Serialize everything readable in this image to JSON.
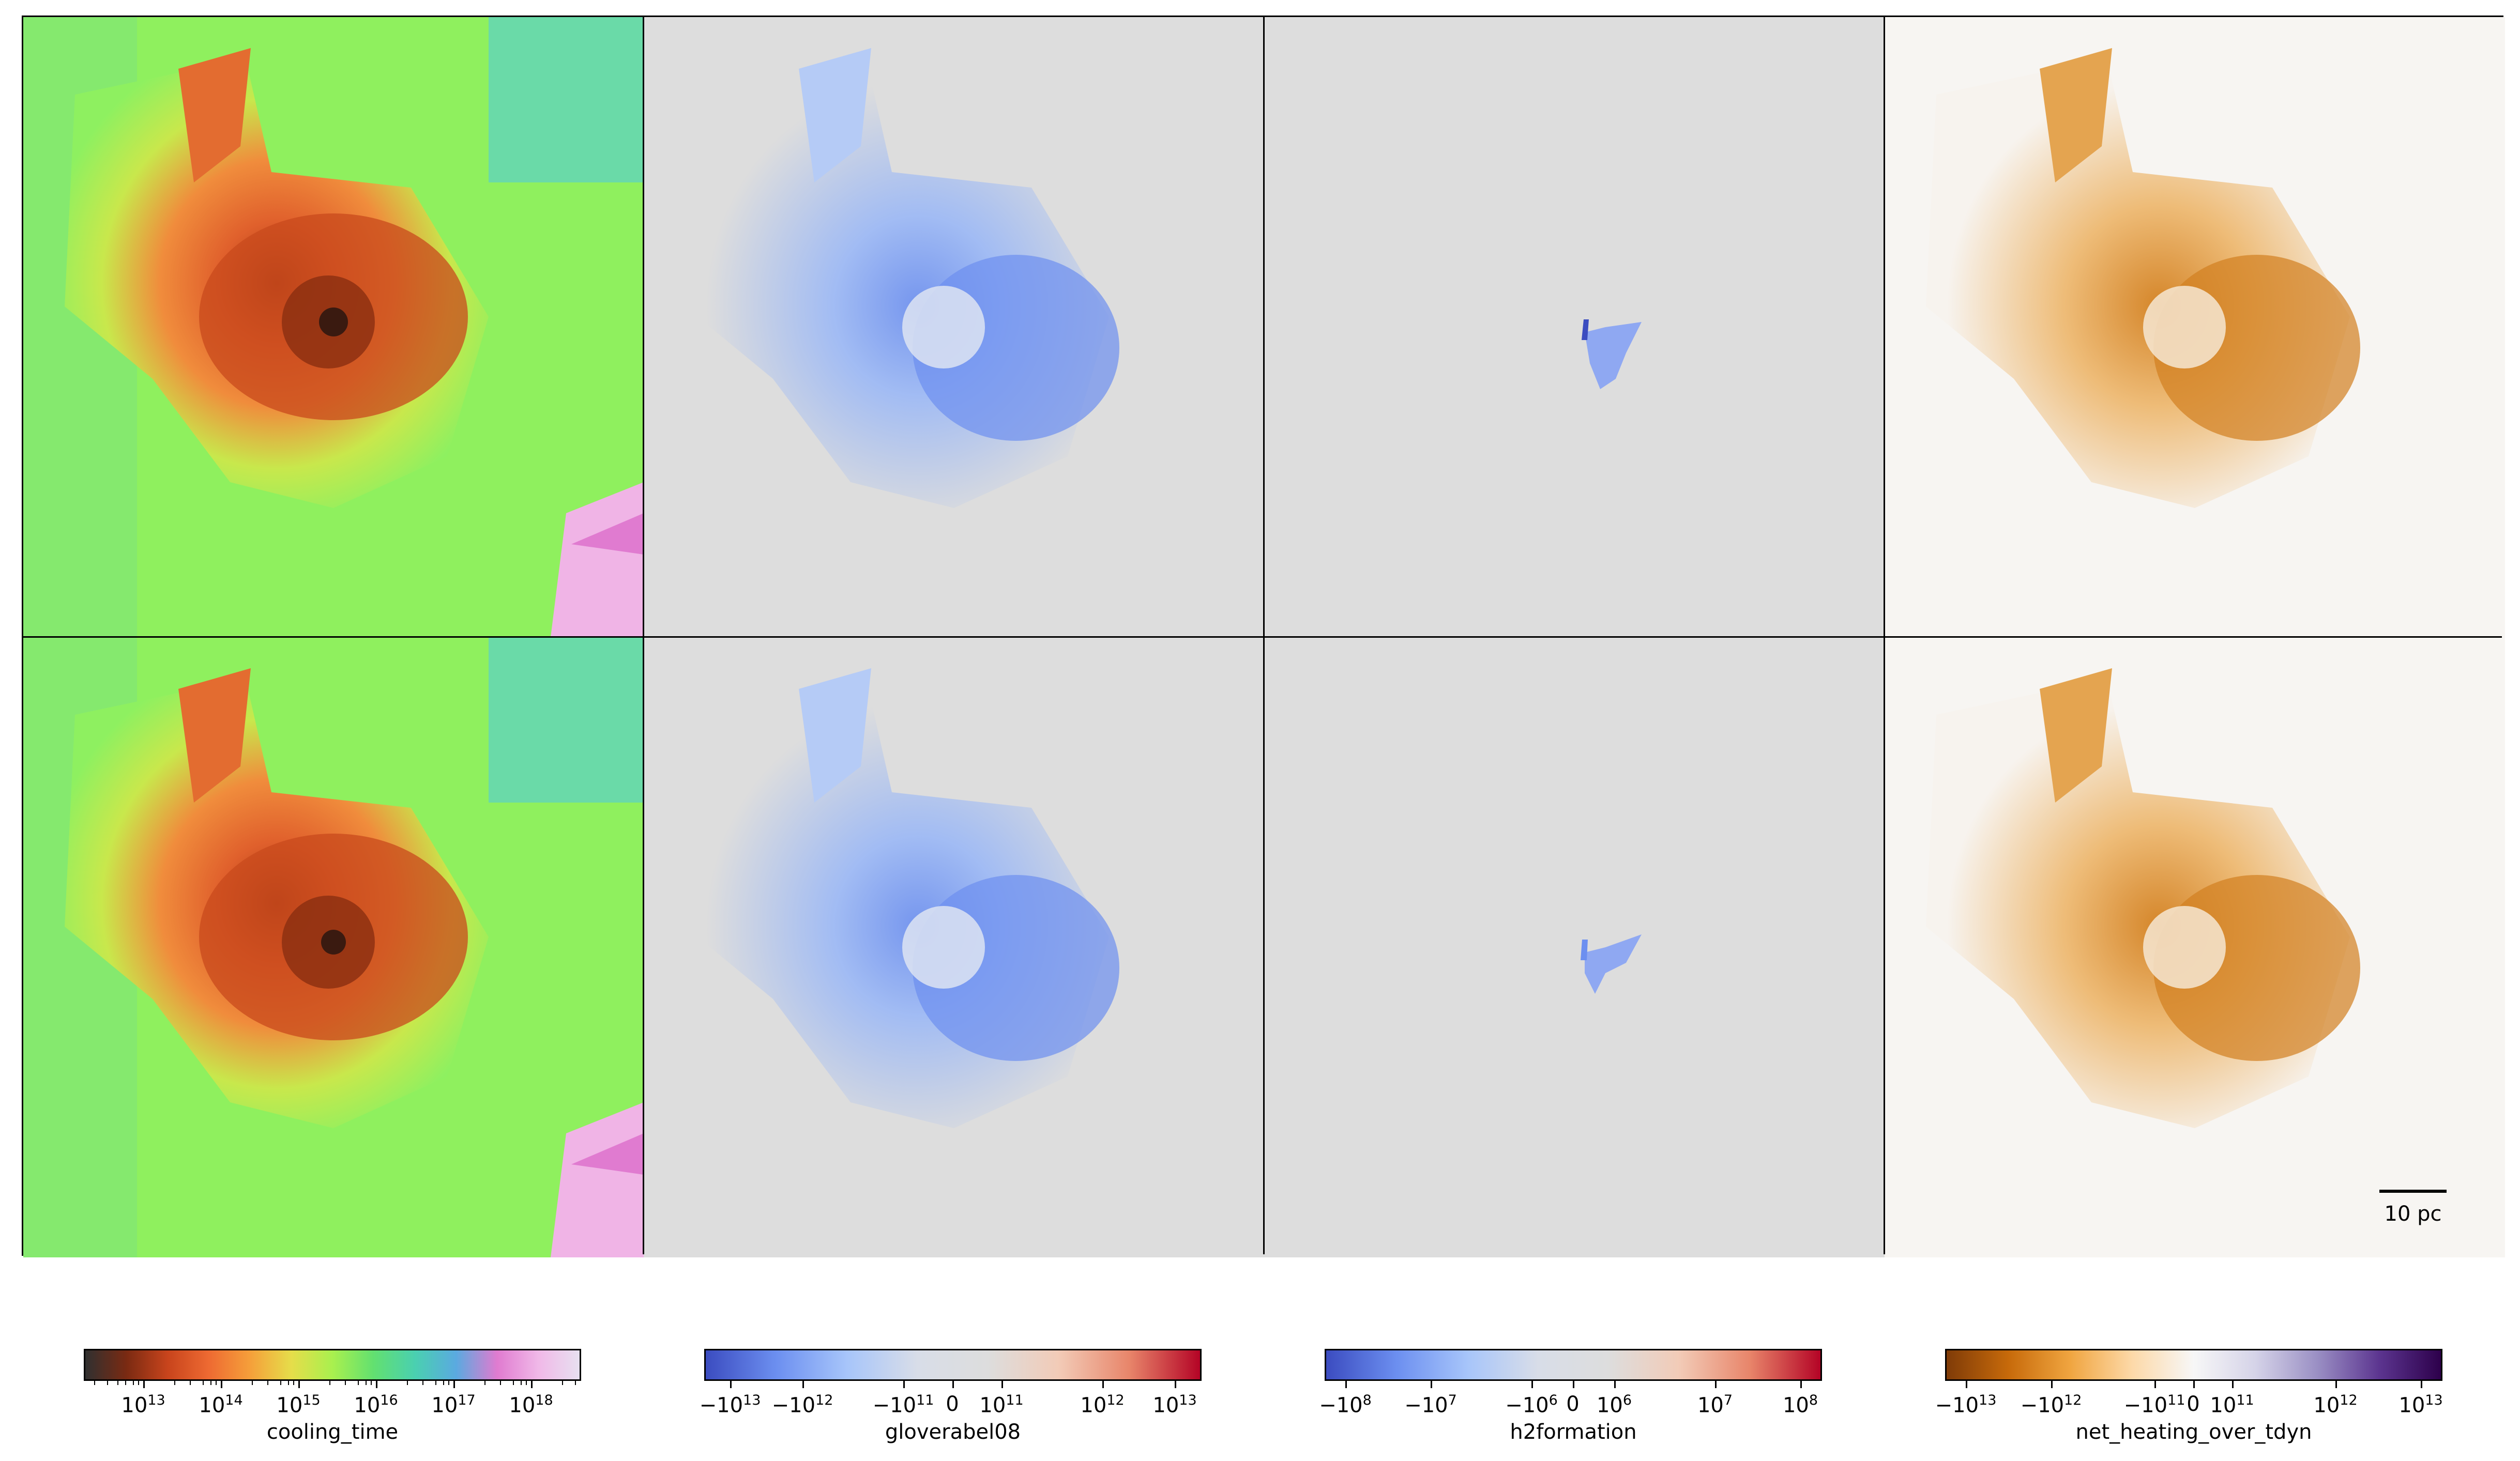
{
  "scale_bar": {
    "label": "10 pc"
  },
  "colorbars": [
    {
      "label": "cooling_time",
      "gradient": [
        "#303030",
        "#7a2a12",
        "#c8441c",
        "#ee6a32",
        "#f59f3a",
        "#e6dd4a",
        "#a9f04e",
        "#62e070",
        "#4ad0b0",
        "#5aaae0",
        "#e07bd0",
        "#f0b8e8",
        "#e8e0f0"
      ],
      "ticks": [
        {
          "base": "10",
          "exp": "13"
        },
        {
          "base": "10",
          "exp": "14"
        },
        {
          "base": "10",
          "exp": "15"
        },
        {
          "base": "10",
          "exp": "16"
        },
        {
          "base": "10",
          "exp": "17"
        },
        {
          "base": "10",
          "exp": "18"
        }
      ]
    },
    {
      "label": "gloverabel08",
      "gradient": [
        "#3b4cc0",
        "#6c8ff0",
        "#a7c5fa",
        "#d8dde8",
        "#dddddd",
        "#f2cbb7",
        "#e8856a",
        "#b40426"
      ],
      "ticks": [
        {
          "base": "−10",
          "exp": "13"
        },
        {
          "base": "−10",
          "exp": "12"
        },
        {
          "base": "−10",
          "exp": "11"
        },
        {
          "base": "0",
          "exp": ""
        },
        {
          "base": "10",
          "exp": "11"
        },
        {
          "base": "10",
          "exp": "12"
        },
        {
          "base": "10",
          "exp": "13"
        }
      ]
    },
    {
      "label": "h2formation",
      "gradient": [
        "#3b4cc0",
        "#6c8ff0",
        "#a7c5fa",
        "#d8dde8",
        "#dddddd",
        "#f2cbb7",
        "#e8856a",
        "#b40426"
      ],
      "ticks": [
        {
          "base": "−10",
          "exp": "8"
        },
        {
          "base": "−10",
          "exp": "7"
        },
        {
          "base": "−10",
          "exp": "6"
        },
        {
          "base": "0",
          "exp": ""
        },
        {
          "base": "10",
          "exp": "6"
        },
        {
          "base": "10",
          "exp": "7"
        },
        {
          "base": "10",
          "exp": "8"
        }
      ]
    },
    {
      "label": "net_heating_over_tdyn",
      "gradient": [
        "#7f3b08",
        "#c76a0a",
        "#f0a540",
        "#fdd9a8",
        "#f7f7f7",
        "#d5d3e8",
        "#9a8fc4",
        "#5c3590",
        "#2d004b"
      ],
      "ticks": [
        {
          "base": "−10",
          "exp": "13"
        },
        {
          "base": "−10",
          "exp": "12"
        },
        {
          "base": "−10",
          "exp": "11"
        },
        {
          "base": "0",
          "exp": ""
        },
        {
          "base": "10",
          "exp": "11"
        },
        {
          "base": "10",
          "exp": "12"
        },
        {
          "base": "10",
          "exp": "13"
        }
      ]
    }
  ]
}
